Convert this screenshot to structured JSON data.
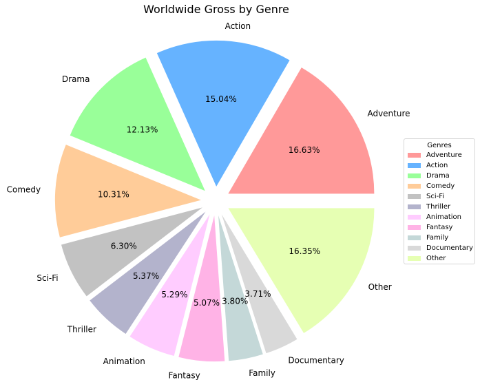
{
  "chart_data": {
    "type": "pie",
    "title": "Worldwide Gross by Genre",
    "legend_title": "Genres",
    "legend_position": "center-right",
    "start_angle_deg": 0,
    "direction": "counterclockwise",
    "slices": [
      {
        "label": "Adventure",
        "pct": 16.63,
        "pct_label": "16.63%",
        "color": "#ff9999"
      },
      {
        "label": "Action",
        "pct": 15.04,
        "pct_label": "15.04%",
        "color": "#66b3ff"
      },
      {
        "label": "Drama",
        "pct": 12.13,
        "pct_label": "12.13%",
        "color": "#99ff99"
      },
      {
        "label": "Comedy",
        "pct": 10.31,
        "pct_label": "10.31%",
        "color": "#ffcc99"
      },
      {
        "label": "Sci-Fi",
        "pct": 6.3,
        "pct_label": "6.30%",
        "color": "#c2c2c2"
      },
      {
        "label": "Thriller",
        "pct": 5.37,
        "pct_label": "5.37%",
        "color": "#b3b3cc"
      },
      {
        "label": "Animation",
        "pct": 5.29,
        "pct_label": "5.29%",
        "color": "#ffccff"
      },
      {
        "label": "Fantasy",
        "pct": 5.07,
        "pct_label": "5.07%",
        "color": "#ffb3e6"
      },
      {
        "label": "Family",
        "pct": 3.8,
        "pct_label": "3.80%",
        "color": "#c4d8d8"
      },
      {
        "label": "Documentary",
        "pct": 3.71,
        "pct_label": "3.71%",
        "color": "#d9d9d9"
      },
      {
        "label": "Other",
        "pct": 16.35,
        "pct_label": "16.35%",
        "color": "#e6ffb3"
      }
    ]
  }
}
